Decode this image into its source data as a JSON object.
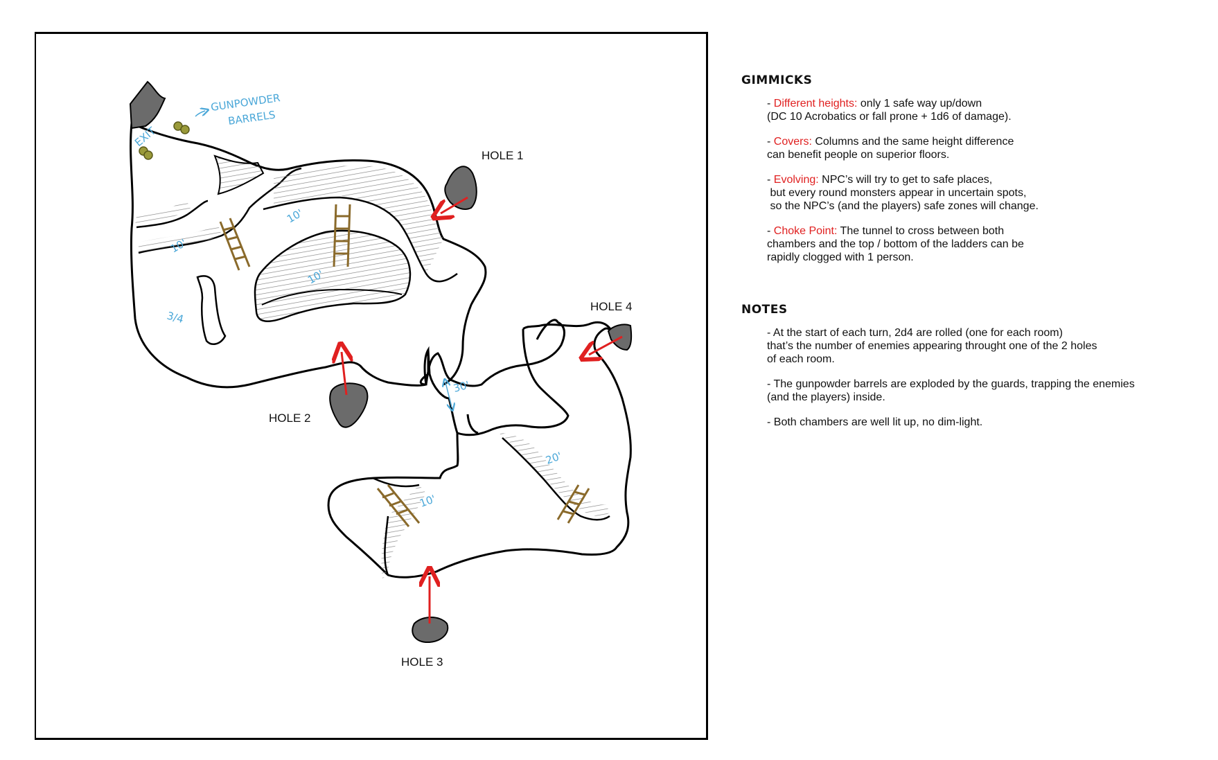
{
  "map": {
    "holes": [
      {
        "label": "HOLE 1"
      },
      {
        "label": "HOLE 2"
      },
      {
        "label": "HOLE 3"
      },
      {
        "label": "HOLE 4"
      }
    ],
    "sketch_notes": {
      "exit": "EXIT",
      "barrels_line1": "GUNPOWDER",
      "barrels_line2": "BARRELS",
      "height_a": "10'",
      "height_b": "10'",
      "height_c": "10'",
      "height_d": "10'",
      "height_e": "3/4",
      "height_f": "30'",
      "height_g": "20'"
    },
    "colors": {
      "ink": "#000000",
      "hole_fill": "#6b6b6b",
      "arrow": "#e02020",
      "ladder": "#8a6a2b",
      "barrel": "#8a8a2b",
      "annotation": "#4aa7d8",
      "hatch": "#888888"
    }
  },
  "gimmicks": {
    "heading": "GIMMICKS",
    "items": [
      {
        "keyword": "Different heights:",
        "text": " only 1 safe way up/down\n(DC 10 Acrobatics or fall prone + 1d6 of damage)."
      },
      {
        "keyword": "Covers:",
        "text": " Columns and the same height difference\ncan benefit people on superior floors."
      },
      {
        "keyword": "Evolving:",
        "text": " NPC’s will try to get to safe places,\n but every round monsters appear in uncertain spots,\n so the NPC’s (and the players) safe zones will change."
      },
      {
        "keyword": "Choke Point:",
        "text": " The tunnel to cross between both\nchambers and the top / bottom of the ladders can be\nrapidly clogged with 1 person."
      }
    ]
  },
  "notes": {
    "heading": "NOTES",
    "items": [
      "- At the start of each turn, 2d4 are rolled (one for each room)\nthat’s the number of enemies appearing throught one of the 2 holes\nof each room.",
      "- The gunpowder barrels are exploded by the guards, trapping the enemies\n(and the players) inside.",
      "- Both chambers are well lit up, no dim-light."
    ]
  }
}
